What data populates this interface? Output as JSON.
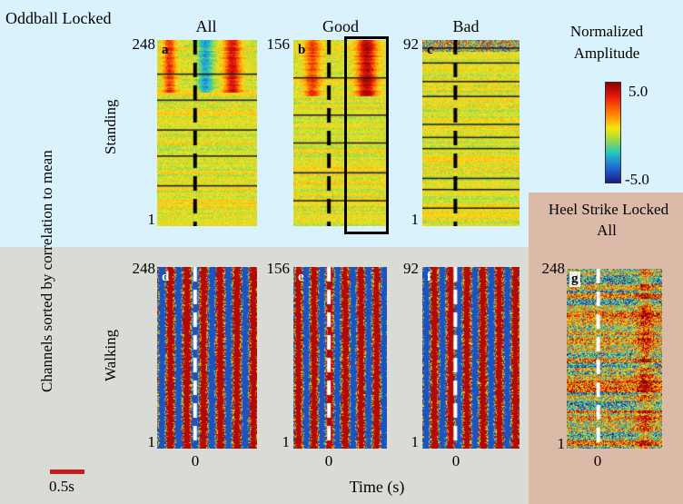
{
  "title": "Oddball Locked",
  "columns": {
    "all": "All",
    "good": "Good",
    "bad": "Bad"
  },
  "rows": {
    "standing": "Standing",
    "walking": "Walking"
  },
  "y_axis_label": "Channels sorted by correlation to mean",
  "x_axis_label": "Time (s)",
  "colorbar": {
    "title_line1": "Normalized",
    "title_line2": "Amplitude",
    "max": "5.0",
    "min": "-5.0"
  },
  "heel_strike": {
    "title_line1": "Heel Strike Locked",
    "title_line2": "All"
  },
  "scale_bar_label": "0.5s",
  "panels": {
    "a": {
      "letter": "a",
      "top": "248",
      "bottom": "1"
    },
    "b": {
      "letter": "b",
      "top": "156"
    },
    "c": {
      "letter": "c",
      "top": "92",
      "bottom": "1"
    },
    "d": {
      "letter": "d",
      "top": "248",
      "bottom": "1",
      "zero": "0"
    },
    "e": {
      "letter": "e",
      "top": "156",
      "bottom": "1",
      "zero": "0"
    },
    "f": {
      "letter": "f",
      "top": "92",
      "bottom": "1",
      "zero": "0"
    },
    "g": {
      "letter": "g",
      "top": "248",
      "bottom": "1",
      "zero": "0"
    }
  },
  "colors": {
    "standing_bg": "#d9f2fb",
    "walking_bg": "#d8dbd6",
    "heel_bg": "#dcbaa8",
    "scale_bar": "#c41e1e"
  }
}
